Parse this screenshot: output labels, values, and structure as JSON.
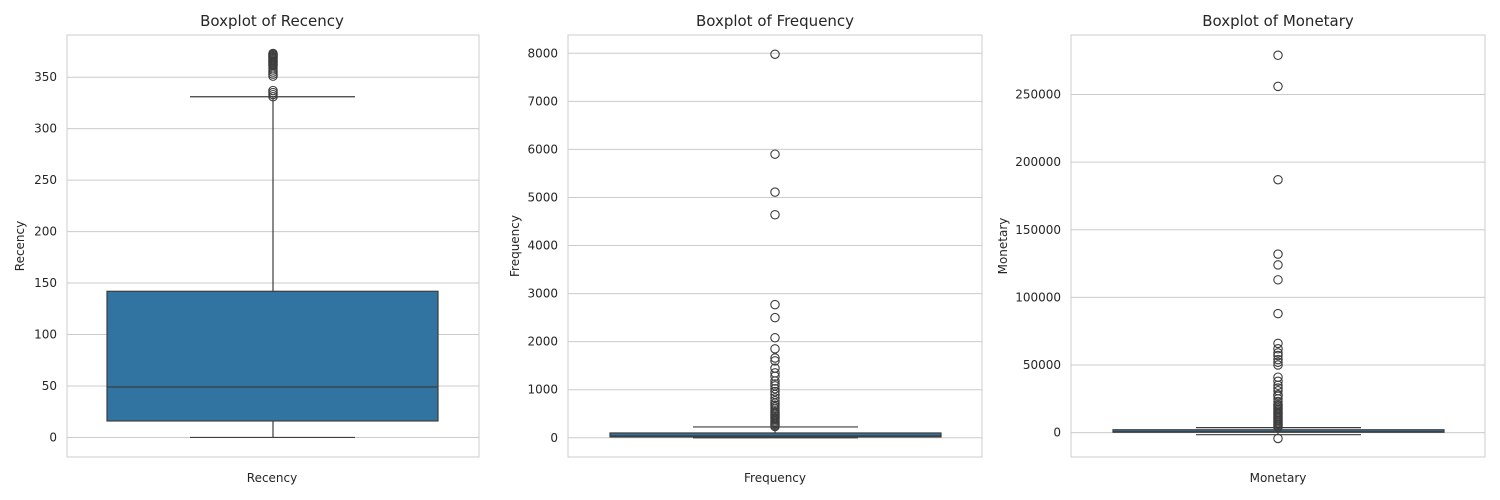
{
  "chart_data": [
    {
      "type": "boxplot",
      "title": "Boxplot of Recency",
      "xlabel": "Recency",
      "ylabel": "Recency",
      "ylim": [
        -19,
        391
      ],
      "yticks": [
        0,
        50,
        100,
        150,
        200,
        250,
        300,
        350
      ],
      "grid": true,
      "box": {
        "whisker_low": 0,
        "q1": 16,
        "median": 49,
        "q3": 142,
        "whisker_high": 331
      },
      "fliers": [
        331,
        333,
        335,
        337,
        351,
        353,
        355,
        357,
        359,
        361,
        362,
        363,
        364,
        365,
        366,
        367,
        368,
        369,
        370,
        371,
        372,
        373
      ]
    },
    {
      "type": "boxplot",
      "title": "Boxplot of Frequency",
      "xlabel": "Frequency",
      "ylabel": "Frequency",
      "ylim": [
        -400,
        8380
      ],
      "yticks": [
        0,
        1000,
        2000,
        3000,
        4000,
        5000,
        6000,
        7000,
        8000
      ],
      "grid": true,
      "box": {
        "whisker_low": 1,
        "q1": 17,
        "median": 41,
        "q3": 100,
        "whisker_high": 225
      },
      "fliers": [
        235,
        260,
        290,
        320,
        350,
        380,
        410,
        440,
        470,
        500,
        530,
        560,
        600,
        640,
        680,
        720,
        770,
        830,
        900,
        960,
        1020,
        1080,
        1120,
        1180,
        1280,
        1350,
        1450,
        1600,
        1660,
        1850,
        2080,
        2500,
        2770,
        4640,
        5110,
        5900,
        7980
      ]
    },
    {
      "type": "boxplot",
      "title": "Boxplot of Monetary",
      "xlabel": "Monetary",
      "ylabel": "Monetary",
      "ylim": [
        -18000,
        294000
      ],
      "yticks": [
        0,
        50000,
        100000,
        150000,
        200000,
        250000
      ],
      "grid": true,
      "box": {
        "whisker_low": -1500,
        "q1": 300,
        "median": 670,
        "q3": 1660,
        "whisker_high": 3700
      },
      "fliers": [
        -4300,
        4000,
        5000,
        6000,
        7000,
        8000,
        9000,
        10000,
        11000,
        12000,
        13000,
        14000,
        15000,
        16000,
        17000,
        18000,
        19000,
        20000,
        21000,
        23000,
        25000,
        27000,
        28000,
        31000,
        33000,
        35000,
        38000,
        41000,
        50000,
        52000,
        54000,
        57000,
        59000,
        62000,
        66000,
        88000,
        113000,
        124000,
        132000,
        187000,
        256000,
        279000
      ]
    }
  ],
  "colors": {
    "box_fill": "#3274a1",
    "line": "#3d3d3d",
    "grid": "#cccccc",
    "frame": "#cccccc",
    "text": "#262626"
  }
}
